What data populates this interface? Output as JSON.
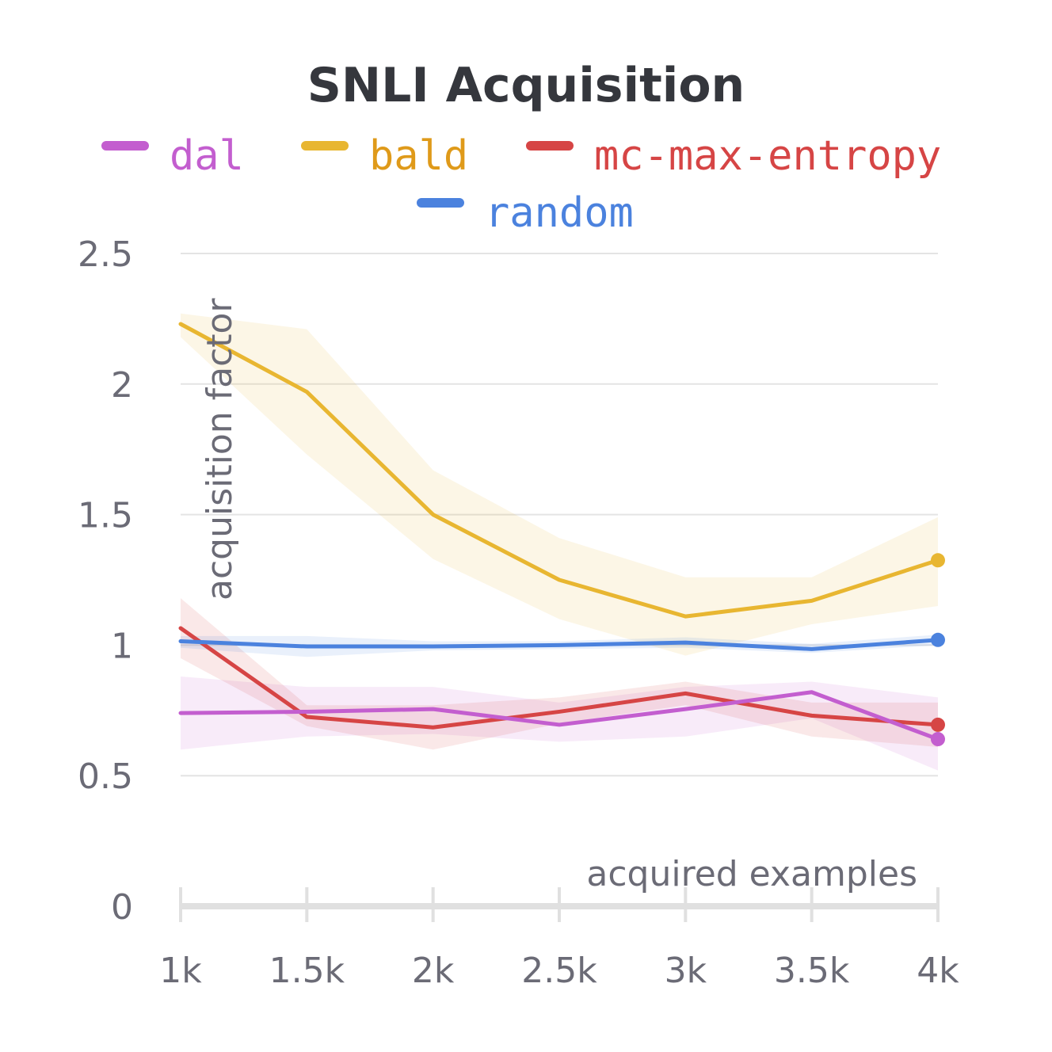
{
  "chart_data": {
    "type": "line",
    "title": "SNLI Acquisition",
    "xlabel": "acquired examples",
    "ylabel": "acquisition factor",
    "x": [
      1000,
      1500,
      2000,
      2500,
      3000,
      3500,
      4000
    ],
    "x_tick_labels": [
      "1k",
      "1.5k",
      "2k",
      "2.5k",
      "3k",
      "3.5k",
      "4k"
    ],
    "y_ticks": [
      0,
      0.5,
      1,
      1.5,
      2,
      2.5
    ],
    "y_tick_labels": [
      "0",
      "0.5",
      "1",
      "1.5",
      "2",
      "2.5"
    ],
    "xlim": [
      1000,
      4000
    ],
    "ylim": [
      0,
      2.5
    ],
    "grid": "horizontal",
    "legend_position": "top",
    "series": [
      {
        "name": "dal",
        "color": "#c35ecf",
        "values": [
          0.74,
          0.745,
          0.755,
          0.695,
          0.755,
          0.82,
          0.64
        ],
        "band_low": [
          0.6,
          0.65,
          0.66,
          0.63,
          0.65,
          0.72,
          0.52
        ],
        "band_high": [
          0.88,
          0.84,
          0.84,
          0.78,
          0.84,
          0.86,
          0.8
        ]
      },
      {
        "name": "bald",
        "color": "#e8b631",
        "values": [
          2.23,
          1.97,
          1.5,
          1.25,
          1.11,
          1.17,
          1.325
        ],
        "band_low": [
          2.18,
          1.73,
          1.33,
          1.1,
          0.96,
          1.08,
          1.15
        ],
        "band_high": [
          2.27,
          2.21,
          1.67,
          1.41,
          1.26,
          1.26,
          1.49
        ]
      },
      {
        "name": "mc-max-entropy",
        "color": "#d64545",
        "values": [
          1.065,
          0.725,
          0.685,
          0.745,
          0.815,
          0.73,
          0.695
        ],
        "band_low": [
          0.95,
          0.69,
          0.6,
          0.7,
          0.77,
          0.65,
          0.61
        ],
        "band_high": [
          1.18,
          0.77,
          0.77,
          0.8,
          0.86,
          0.78,
          0.78
        ]
      },
      {
        "name": "random",
        "color": "#4b82de",
        "values": [
          1.015,
          0.995,
          0.995,
          1.0,
          1.01,
          0.985,
          1.02
        ],
        "band_low": [
          0.99,
          0.955,
          0.98,
          0.985,
          0.99,
          0.97,
          1.0
        ],
        "band_high": [
          1.035,
          1.035,
          1.015,
          1.015,
          1.03,
          1.005,
          1.04
        ]
      }
    ]
  }
}
